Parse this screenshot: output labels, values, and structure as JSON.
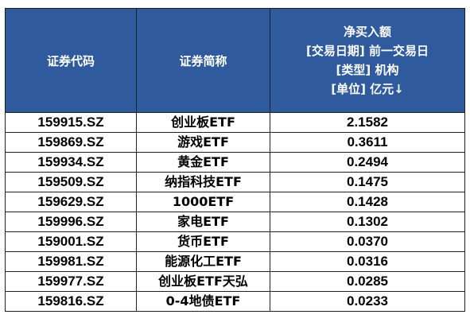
{
  "table": {
    "headers": {
      "code": "证券代码",
      "name": "证券简称",
      "value_lines": [
        "净买入额",
        "[交易日期] 前一交易日",
        "[类型] 机构",
        "[单位] 亿元↓"
      ]
    },
    "rows": [
      {
        "code": "159915.SZ",
        "name": "创业板ETF",
        "value": "2.1582"
      },
      {
        "code": "159869.SZ",
        "name": "游戏ETF",
        "value": "0.3611"
      },
      {
        "code": "159934.SZ",
        "name": "黄金ETF",
        "value": "0.2494"
      },
      {
        "code": "159509.SZ",
        "name": "纳指科技ETF",
        "value": "0.1475"
      },
      {
        "code": "159629.SZ",
        "name": "1000ETF",
        "value": "0.1428"
      },
      {
        "code": "159996.SZ",
        "name": "家电ETF",
        "value": "0.1302"
      },
      {
        "code": "159001.SZ",
        "name": "货币ETF",
        "value": "0.0370"
      },
      {
        "code": "159981.SZ",
        "name": "能源化工ETF",
        "value": "0.0316"
      },
      {
        "code": "159977.SZ",
        "name": "创业板ETF天弘",
        "value": "0.0285"
      },
      {
        "code": "159816.SZ",
        "name": "0-4地债ETF",
        "value": "0.0233"
      }
    ]
  }
}
